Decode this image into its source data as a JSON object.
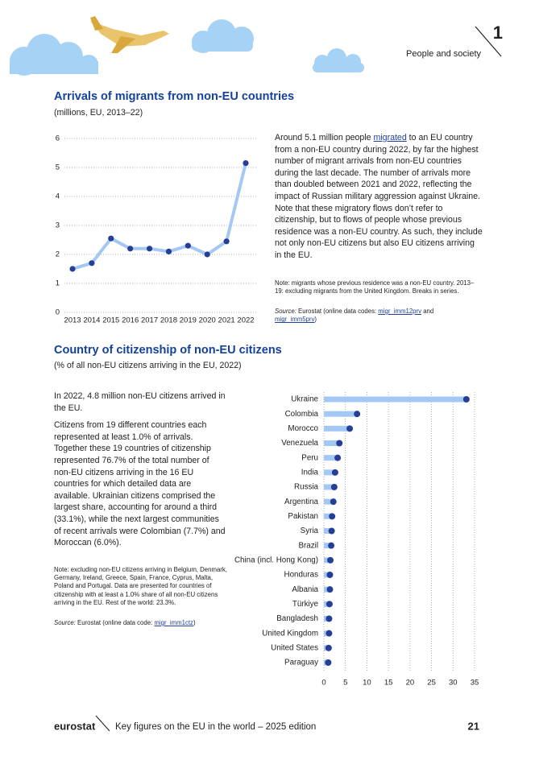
{
  "header": {
    "section_number": "1",
    "section": "People and society"
  },
  "section1": {
    "body": [
      "Around 5.1 million people ",
      "migrated",
      " to an EU country from a non-EU country during 2022, by far the highest number of migrant arrivals from non-EU countries during the last decade. The number of arrivals more than doubled between 2021 and 2022, reflecting the impact of Russian military aggression against Ukraine. Note that these migratory flows don’t refer to citizenship, but to flows of people whose previous residence was a non-EU country. As such, they include not only non-EU citizens but also EU citizens arriving in the EU."
    ],
    "note": "Note: migrants whose previous residence was a non-EU country. 2013–19: excluding migrants from the United Kingdom. Breaks in series.",
    "source": [
      "Source:",
      " Eurostat (online data codes: ",
      "migr_imm12prv",
      " and ",
      "migr_imm5prv",
      ")"
    ]
  },
  "section2": {
    "paragraphs": [
      "In 2022, 4.8 million non-EU citizens arrived in the EU.",
      "Citizens from 19 different countries each represented at least 1.0% of arrivals. Together these 19 countries of citizenship represented 76.7% of the total number of non-EU citizens arriving in the 16 EU countries for which detailed data are available. Ukrainian citizens comprised the largest share, accounting for around a third (33.1%), while the next largest communities of recent arrivals were Colombian (7.7%) and Moroccan (6.0%)."
    ],
    "note": "Note: excluding non-EU citizens arriving in Belgium, Denmark, Germany, Ireland, Greece, Spain, France, Cyprus, Malta, Poland and Portugal. Data are presented for countries of citizenship with at least a 1.0% share of all non-EU citizens arriving in the EU. Rest of the world: 23.3%.",
    "source": [
      "Source:",
      " Eurostat (online data code: ",
      "migr_imm1ctz",
      ")"
    ]
  },
  "chart_data": [
    {
      "type": "line",
      "title": "Arrivals of migrants from non-EU countries",
      "subtitle": "(millions, EU, 2013–22)",
      "categories": [
        "2013",
        "2014",
        "2015",
        "2016",
        "2017",
        "2018",
        "2019",
        "2020",
        "2021",
        "2022"
      ],
      "values": [
        1.5,
        1.7,
        2.55,
        2.2,
        2.2,
        2.1,
        2.3,
        2.0,
        2.45,
        5.15
      ],
      "color": "#a4c8f4",
      "marker_color": "#263f96",
      "ylim": [
        0,
        6
      ],
      "yticks": [
        0,
        1,
        2,
        3,
        4,
        5,
        6
      ],
      "grid": true
    },
    {
      "type": "bar",
      "orientation": "horizontal",
      "title": "Country of citizenship of non-EU citizens",
      "subtitle": "(% of all non-EU citizens arriving in the EU, 2022)",
      "categories": [
        "Ukraine",
        "Colombia",
        "Morocco",
        "Venezuela",
        "Peru",
        "India",
        "Russia",
        "Argentina",
        "Pakistan",
        "Syria",
        "Brazil",
        "China (incl. Hong Kong)",
        "Honduras",
        "Albania",
        "Türkiye",
        "Bangladesh",
        "United Kingdom",
        "United States",
        "Paraguay"
      ],
      "values": [
        33.1,
        7.7,
        6.0,
        3.6,
        3.2,
        2.6,
        2.4,
        2.2,
        1.9,
        1.8,
        1.7,
        1.5,
        1.4,
        1.4,
        1.3,
        1.2,
        1.2,
        1.1,
        1.0
      ],
      "color": "#a4c8f4",
      "marker_color": "#263f96",
      "xlim": [
        0,
        35
      ],
      "xticks": [
        0,
        5,
        10,
        15,
        20,
        25,
        30,
        35
      ],
      "grid": true
    }
  ],
  "footer": {
    "brand": "eurostat",
    "publication": "Key figures on the EU in the world – 2025 edition",
    "page": "21"
  }
}
